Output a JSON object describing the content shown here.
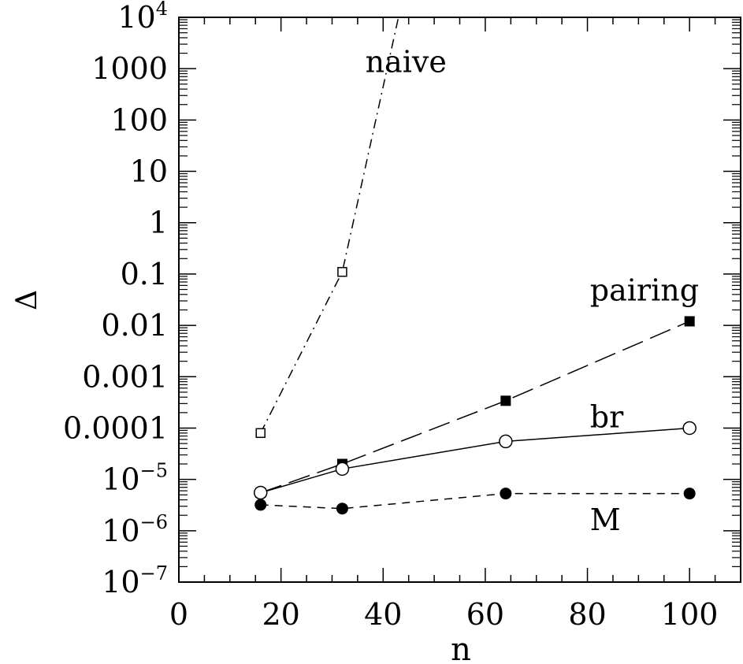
{
  "chart_data": {
    "type": "line",
    "title": "",
    "xlabel": "n",
    "ylabel": "Δ",
    "xlim": [
      0,
      110
    ],
    "ylim": [
      1e-07,
      10000
    ],
    "yscale": "log",
    "grid": false,
    "legend": "none",
    "x_ticks": [
      "0",
      "20",
      "40",
      "60",
      "80",
      "100"
    ],
    "y_ticks": [
      {
        "base": "10",
        "exp": "−7"
      },
      {
        "base": "10",
        "exp": "−6"
      },
      {
        "base": "10",
        "exp": "−5"
      },
      {
        "base": "0.0001",
        "exp": ""
      },
      {
        "base": "0.001",
        "exp": ""
      },
      {
        "base": "0.01",
        "exp": ""
      },
      {
        "base": "0.1",
        "exp": ""
      },
      {
        "base": "1",
        "exp": ""
      },
      {
        "base": "10",
        "exp": ""
      },
      {
        "base": "100",
        "exp": ""
      },
      {
        "base": "1000",
        "exp": ""
      },
      {
        "base": "10",
        "exp": "4"
      }
    ],
    "series": [
      {
        "name": "naive",
        "marker": "open-square",
        "line": "dash-dot",
        "points": [
          {
            "x": 16,
            "y": 8e-05
          },
          {
            "x": 32,
            "y": 0.11
          },
          {
            "x": 43,
            "y": 10000
          }
        ]
      },
      {
        "name": "pairing",
        "marker": "filled-square",
        "line": "long-dash",
        "points": [
          {
            "x": 16,
            "y": 5.5e-06
          },
          {
            "x": 32,
            "y": 2e-05
          },
          {
            "x": 64,
            "y": 0.00034
          },
          {
            "x": 100,
            "y": 0.012
          }
        ]
      },
      {
        "name": "br",
        "marker": "open-circle",
        "line": "solid",
        "points": [
          {
            "x": 16,
            "y": 5.5e-06
          },
          {
            "x": 32,
            "y": 1.6e-05
          },
          {
            "x": 64,
            "y": 5.5e-05
          },
          {
            "x": 100,
            "y": 0.0001
          }
        ]
      },
      {
        "name": "M",
        "marker": "filled-circle",
        "line": "short-dash",
        "points": [
          {
            "x": 16,
            "y": 3.2e-06
          },
          {
            "x": 32,
            "y": 2.7e-06
          },
          {
            "x": 64,
            "y": 5.3e-06
          },
          {
            "x": 100,
            "y": 5.3e-06
          }
        ]
      }
    ]
  }
}
